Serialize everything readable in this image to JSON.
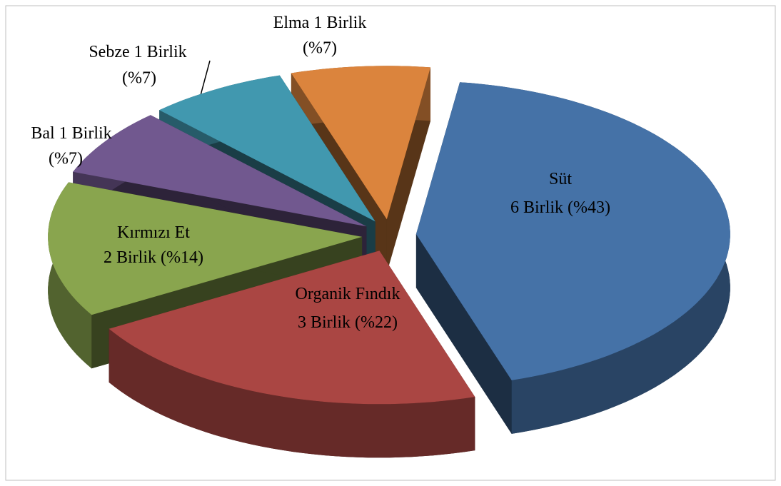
{
  "chart_data": {
    "type": "pie3d",
    "categories": [
      "Süt",
      "Organik Fındık",
      "Kırmızı Et",
      "Bal",
      "Sebze",
      "Elma"
    ],
    "values": [
      6,
      3,
      2,
      1,
      1,
      1
    ],
    "value_labels": [
      "6 Birlik",
      "3 Birlik",
      "2 Birlik",
      "1 Birlik",
      "1 Birlik",
      "1 Birlik"
    ],
    "percentages": [
      43,
      22,
      14,
      7,
      7,
      7
    ],
    "percentage_labels": [
      "(%43)",
      "(%22)",
      "(%14)",
      "(%7)",
      "(%7)",
      "(%7)"
    ],
    "colors": [
      "#4572a7",
      "#aa4643",
      "#89a54e",
      "#71588f",
      "#4198af",
      "#db843d"
    ]
  }
}
